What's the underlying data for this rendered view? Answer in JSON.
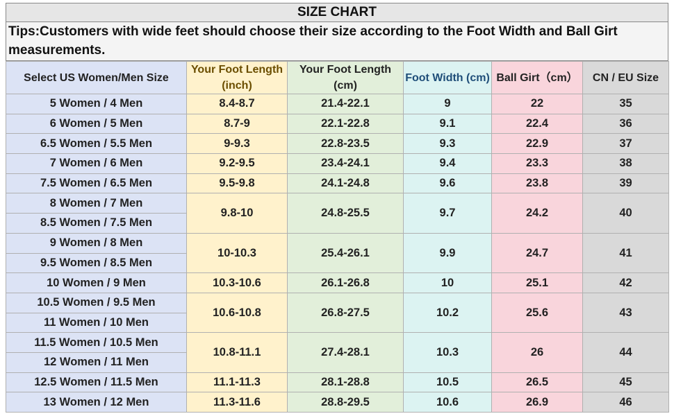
{
  "header": {
    "title": "SIZE CHART",
    "tips": "Tips:Customers with wide feet should choose their size according to the Foot Width and Ball Girt measurements."
  },
  "table": {
    "columns": [
      "Select US Women/Men Size",
      "Your Foot Length (inch)",
      "Your Foot Length (cm)",
      "Foot Width (cm)",
      "Ball Girt（cm）",
      "CN / EU Size"
    ],
    "groups": [
      {
        "sizes": [
          "5 Women / 4 Men"
        ],
        "cells": [
          "8.4-8.7",
          "21.4-22.1",
          "9",
          "22",
          "35"
        ]
      },
      {
        "sizes": [
          "6 Women / 5 Men"
        ],
        "cells": [
          "8.7-9",
          "22.1-22.8",
          "9.1",
          "22.4",
          "36"
        ]
      },
      {
        "sizes": [
          "6.5 Women / 5.5 Men"
        ],
        "cells": [
          "9-9.3",
          "22.8-23.5",
          "9.3",
          "22.9",
          "37"
        ]
      },
      {
        "sizes": [
          "7 Women / 6 Men"
        ],
        "cells": [
          "9.2-9.5",
          "23.4-24.1",
          "9.4",
          "23.3",
          "38"
        ]
      },
      {
        "sizes": [
          "7.5 Women / 6.5 Men"
        ],
        "cells": [
          "9.5-9.8",
          "24.1-24.8",
          "9.6",
          "23.8",
          "39"
        ]
      },
      {
        "sizes": [
          "8 Women / 7 Men",
          "8.5 Women / 7.5 Men"
        ],
        "cells": [
          "9.8-10",
          "24.8-25.5",
          "9.7",
          "24.2",
          "40"
        ]
      },
      {
        "sizes": [
          "9 Women / 8 Men",
          "9.5 Women / 8.5 Men"
        ],
        "cells": [
          "10-10.3",
          "25.4-26.1",
          "9.9",
          "24.7",
          "41"
        ]
      },
      {
        "sizes": [
          "10 Women / 9 Men"
        ],
        "cells": [
          "10.3-10.6",
          "26.1-26.8",
          "10",
          "25.1",
          "42"
        ]
      },
      {
        "sizes": [
          "10.5 Women / 9.5 Men",
          "11 Women / 10 Men"
        ],
        "cells": [
          "10.6-10.8",
          "26.8-27.5",
          "10.2",
          "25.6",
          "43"
        ]
      },
      {
        "sizes": [
          "11.5 Women / 10.5 Men",
          "12 Women / 11 Men"
        ],
        "cells": [
          "10.8-11.1",
          "27.4-28.1",
          "10.3",
          "26",
          "44"
        ]
      },
      {
        "sizes": [
          "12.5 Women / 11.5 Men"
        ],
        "cells": [
          "11.1-11.3",
          "28.1-28.8",
          "10.5",
          "26.5",
          "45"
        ]
      },
      {
        "sizes": [
          "13 Women / 12 Men"
        ],
        "cells": [
          "11.3-11.6",
          "28.8-29.5",
          "10.6",
          "26.9",
          "46"
        ]
      }
    ]
  }
}
